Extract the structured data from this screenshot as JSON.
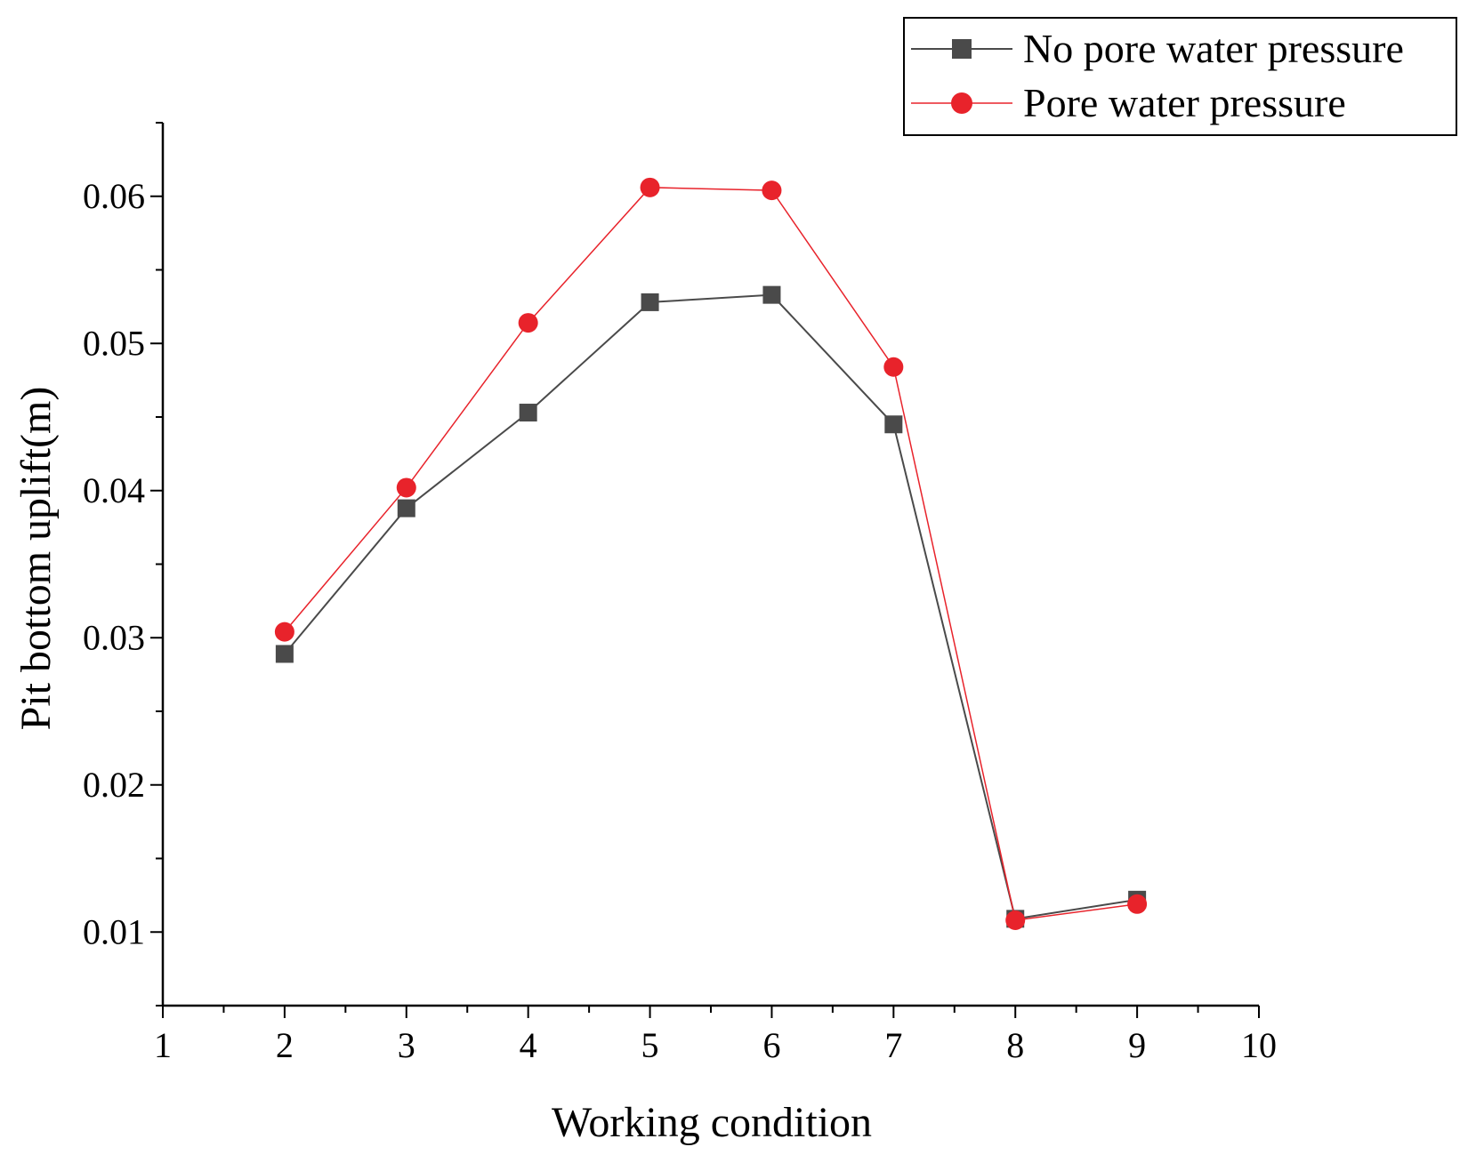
{
  "chart_data": {
    "type": "line",
    "title": "",
    "xlabel": "Working condition",
    "ylabel": "Pit bottom uplift(m)",
    "xlim": [
      1,
      10
    ],
    "ylim": [
      0.005,
      0.065
    ],
    "x_ticks": [
      "1",
      "2",
      "3",
      "4",
      "5",
      "6",
      "7",
      "8",
      "9",
      "10"
    ],
    "y_ticks": [
      "0.01",
      "0.02",
      "0.03",
      "0.04",
      "0.05",
      "0.06"
    ],
    "legend_position": "top-right",
    "series": [
      {
        "name": "No pore water pressure",
        "color": "#4a4a4a",
        "marker": "square",
        "x": [
          2,
          3,
          4,
          5,
          6,
          7,
          8,
          9
        ],
        "y": [
          0.0289,
          0.0388,
          0.0453,
          0.0528,
          0.0533,
          0.0445,
          0.0109,
          0.0122
        ]
      },
      {
        "name": "Pore water pressure",
        "color": "#e8232b",
        "marker": "circle",
        "x": [
          2,
          3,
          4,
          5,
          6,
          7,
          8,
          9
        ],
        "y": [
          0.0304,
          0.0402,
          0.0514,
          0.0606,
          0.0604,
          0.0484,
          0.0108,
          0.0119
        ]
      }
    ]
  }
}
